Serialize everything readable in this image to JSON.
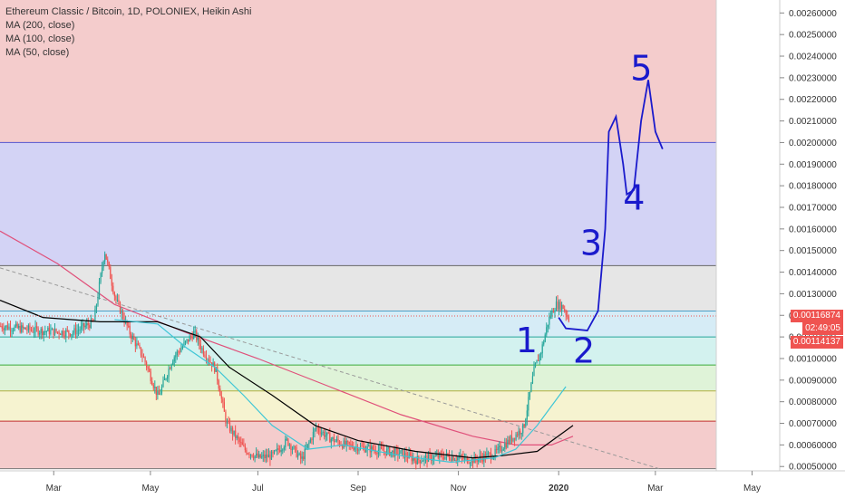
{
  "header": {
    "title": "Ethereum Classic / Bitcoin, 1D, POLONIEX, Heikin Ashi",
    "indicators": [
      "MA (200, close)",
      "MA (100, close)",
      "MA (50, close)"
    ]
  },
  "price_tags": {
    "current": "0.00116874",
    "countdown": "02:49:05",
    "low": "0.00114137"
  },
  "colors": {
    "red_zone": "#f4cccc",
    "blue_zone": "#d3d3f5",
    "gray_zone": "#e6e6e6",
    "light_blue_zone": "#d6ecf6",
    "cyan_zone": "#d3f2ef",
    "light_green_zone": "#dff3d8",
    "green_zone": "#e7f5d2",
    "yellow_zone": "#f6f3d0",
    "ma200": "#e0507a",
    "ma100": "#000000",
    "ma50": "#3ec6d6",
    "up": "#26a69a",
    "down": "#ef5350",
    "annotation": "#1a1acc"
  },
  "chart_data": {
    "type": "line",
    "y_axis_ticks": [
      "0.00260000",
      "0.00250000",
      "0.00240000",
      "0.00230000",
      "0.00220000",
      "0.00210000",
      "0.00200000",
      "0.00190000",
      "0.00180000",
      "0.00170000",
      "0.00160000",
      "0.00150000",
      "0.00140000",
      "0.00130000",
      "0.00120000",
      "0.00110000",
      "0.00100000",
      "0.00090000",
      "0.00080000",
      "0.00070000",
      "0.00060000",
      "0.00050000"
    ],
    "x_axis_ticks": [
      "Mar",
      "May",
      "Jul",
      "Sep",
      "Nov",
      "2020",
      "Mar",
      "May"
    ],
    "ylim": [
      0.00048,
      0.00266
    ],
    "horizontal_levels": [
      0.002,
      0.00143,
      0.00122,
      0.0011,
      0.00097,
      0.00085,
      0.00071,
      0.00049
    ],
    "ma200_points": [
      [
        0.0,
        0.00159
      ],
      [
        0.08,
        0.00144
      ],
      [
        0.16,
        0.00125
      ],
      [
        0.26,
        0.00112
      ],
      [
        0.36,
        0.001
      ],
      [
        0.46,
        0.00087
      ],
      [
        0.56,
        0.00074
      ],
      [
        0.66,
        0.00064
      ],
      [
        0.72,
        0.0006
      ],
      [
        0.77,
        0.0006
      ],
      [
        0.8,
        0.00064
      ]
    ],
    "ma100_points": [
      [
        0.0,
        0.00127
      ],
      [
        0.06,
        0.00119
      ],
      [
        0.14,
        0.00117
      ],
      [
        0.22,
        0.00117
      ],
      [
        0.28,
        0.0011
      ],
      [
        0.32,
        0.00096
      ],
      [
        0.38,
        0.00083
      ],
      [
        0.44,
        0.00069
      ],
      [
        0.5,
        0.00062
      ],
      [
        0.58,
        0.00057
      ],
      [
        0.66,
        0.00054
      ],
      [
        0.7,
        0.00055
      ],
      [
        0.75,
        0.00057
      ],
      [
        0.8,
        0.00069
      ]
    ],
    "ma50_points": [
      [
        0.16,
        0.00118
      ],
      [
        0.22,
        0.00116
      ],
      [
        0.26,
        0.00105
      ],
      [
        0.3,
        0.00096
      ],
      [
        0.34,
        0.00083
      ],
      [
        0.38,
        0.00069
      ],
      [
        0.43,
        0.00058
      ],
      [
        0.48,
        0.0006
      ],
      [
        0.56,
        0.00055
      ],
      [
        0.63,
        0.00052
      ],
      [
        0.69,
        0.00054
      ],
      [
        0.72,
        0.00058
      ],
      [
        0.75,
        0.00069
      ],
      [
        0.79,
        0.00087
      ]
    ],
    "trendline": [
      [
        0.0,
        0.00142
      ],
      [
        0.92,
        0.00049
      ]
    ],
    "candles": {
      "count": 410,
      "x_end": 0.795,
      "path": [
        [
          0.0,
          0.00115
        ],
        [
          0.05,
          0.00113
        ],
        [
          0.1,
          0.00112
        ],
        [
          0.13,
          0.00117
        ],
        [
          0.145,
          0.0015
        ],
        [
          0.16,
          0.00128
        ],
        [
          0.18,
          0.00112
        ],
        [
          0.2,
          0.001
        ],
        [
          0.22,
          0.00082
        ],
        [
          0.24,
          0.001
        ],
        [
          0.26,
          0.00108
        ],
        [
          0.27,
          0.00112
        ],
        [
          0.28,
          0.00105
        ],
        [
          0.3,
          0.00095
        ],
        [
          0.315,
          0.0007
        ],
        [
          0.34,
          0.00058
        ],
        [
          0.36,
          0.00054
        ],
        [
          0.38,
          0.00055
        ],
        [
          0.4,
          0.00062
        ],
        [
          0.42,
          0.00053
        ],
        [
          0.44,
          0.00068
        ],
        [
          0.46,
          0.00063
        ],
        [
          0.48,
          0.0006
        ],
        [
          0.52,
          0.00058
        ],
        [
          0.56,
          0.00056
        ],
        [
          0.58,
          0.00053
        ],
        [
          0.62,
          0.00055
        ],
        [
          0.66,
          0.00053
        ],
        [
          0.69,
          0.00056
        ],
        [
          0.71,
          0.00062
        ],
        [
          0.73,
          0.00068
        ],
        [
          0.745,
          0.00095
        ],
        [
          0.755,
          0.00104
        ],
        [
          0.765,
          0.00118
        ],
        [
          0.775,
          0.00125
        ],
        [
          0.785,
          0.00124
        ],
        [
          0.795,
          0.00117
        ]
      ]
    },
    "annotations": [
      {
        "label": "1",
        "x": 0.72,
        "y": 0.00103
      },
      {
        "label": "2",
        "x": 0.8,
        "y": 0.00098
      },
      {
        "label": "3",
        "x": 0.81,
        "y": 0.00148
      },
      {
        "label": "4",
        "x": 0.87,
        "y": 0.00169
      },
      {
        "label": "5",
        "x": 0.88,
        "y": 0.00229
      }
    ],
    "projection": [
      [
        0.78,
        0.00119
      ],
      [
        0.79,
        0.00114
      ],
      [
        0.82,
        0.00113
      ],
      [
        0.835,
        0.00122
      ],
      [
        0.845,
        0.0016
      ],
      [
        0.85,
        0.00205
      ],
      [
        0.86,
        0.00212
      ],
      [
        0.87,
        0.0019
      ],
      [
        0.875,
        0.00176
      ],
      [
        0.885,
        0.00178
      ],
      [
        0.895,
        0.0021
      ],
      [
        0.905,
        0.00229
      ],
      [
        0.915,
        0.00205
      ],
      [
        0.925,
        0.00197
      ]
    ]
  }
}
